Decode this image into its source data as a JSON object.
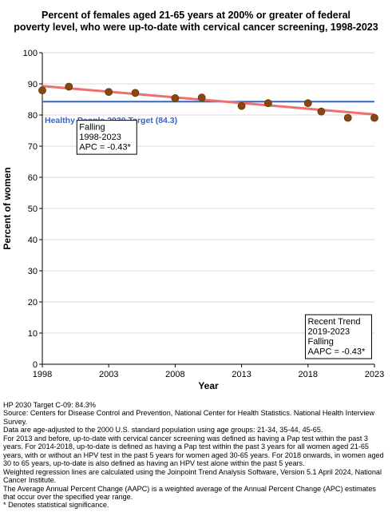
{
  "title_line1": "Percent of females aged 21-65 years at 200% or greater of federal",
  "title_line2": "poverty level, who were up-to-date with cervical cancer screening, 1998-2023",
  "chart_data": {
    "type": "scatter",
    "xlabel": "Year",
    "ylabel": "Percent of women",
    "xlim": [
      1998,
      2023
    ],
    "ylim": [
      0,
      100
    ],
    "x_ticks": [
      "1998",
      "2003",
      "2008",
      "2013",
      "2018",
      "2023"
    ],
    "y_ticks": [
      "0",
      "10",
      "20",
      "30",
      "40",
      "50",
      "60",
      "70",
      "80",
      "90",
      "100"
    ],
    "grid": "horizontal",
    "colors": {
      "points": "#8B4513",
      "point_stroke": "#5a3a00",
      "trend": "#f06e6e",
      "target": "#3366cc"
    },
    "points": [
      {
        "x": 1998,
        "y": 87.9
      },
      {
        "x": 2000,
        "y": 89.1
      },
      {
        "x": 2003,
        "y": 87.4
      },
      {
        "x": 2005,
        "y": 87.1
      },
      {
        "x": 2008,
        "y": 85.4
      },
      {
        "x": 2010,
        "y": 85.6
      },
      {
        "x": 2013,
        "y": 82.9
      },
      {
        "x": 2015,
        "y": 83.8
      },
      {
        "x": 2018,
        "y": 83.8
      },
      {
        "x": 2019,
        "y": 81.1
      },
      {
        "x": 2021,
        "y": 79.1
      },
      {
        "x": 2023,
        "y": 79.1
      }
    ],
    "trend_line": {
      "x": [
        1998,
        2023
      ],
      "y": [
        89.3,
        80.2
      ]
    },
    "target": {
      "value": 84.3,
      "label": "Healthy People 2030 Target (84.3)"
    },
    "annotation_falling": {
      "lines": [
        "Falling",
        "1998-2023",
        "APC = -0.43*"
      ],
      "x": 2000.6,
      "y": 78.3
    },
    "annotation_recent": {
      "lines": [
        "Recent Trend",
        "2019-2023",
        "Falling",
        "AAPC = -0.43*"
      ],
      "x": 2017.8,
      "y": 15.9
    }
  },
  "footnotes": [
    "HP 2030 Target C-09: 84.3%",
    "Source: Centers for Disease Control and Prevention, National Center for Health Statistics. National Health Interview Survey.",
    "Data are age-adjusted to the 2000 U.S. standard population using age groups: 21-34, 35-44, 45-65.",
    "For 2013 and before, up-to-date with cervical cancer screening was defined as having a Pap test within the past 3 years. For 2014-2018, up-to-date is defined as having a Pap test within the past 3 years for all women aged 21-65 years, with or without an HPV test in the past 5 years for women aged 30-65 years.  For 2018 onwards, in women aged 30 to 65 years, up-to-date is also defined as having an HPV test alone within the past 5 years.",
    "Weighted regression lines are calculated using the Joinpoint Trend Analysis Software, Version 5.1 April 2024, National Cancer Institute.",
    "The Average Annual Percent Change (AAPC) is a weighted average of the Annual Percent Change (APC) estimates that occur over the specified year range.",
    "* Denotes statistical significance."
  ]
}
